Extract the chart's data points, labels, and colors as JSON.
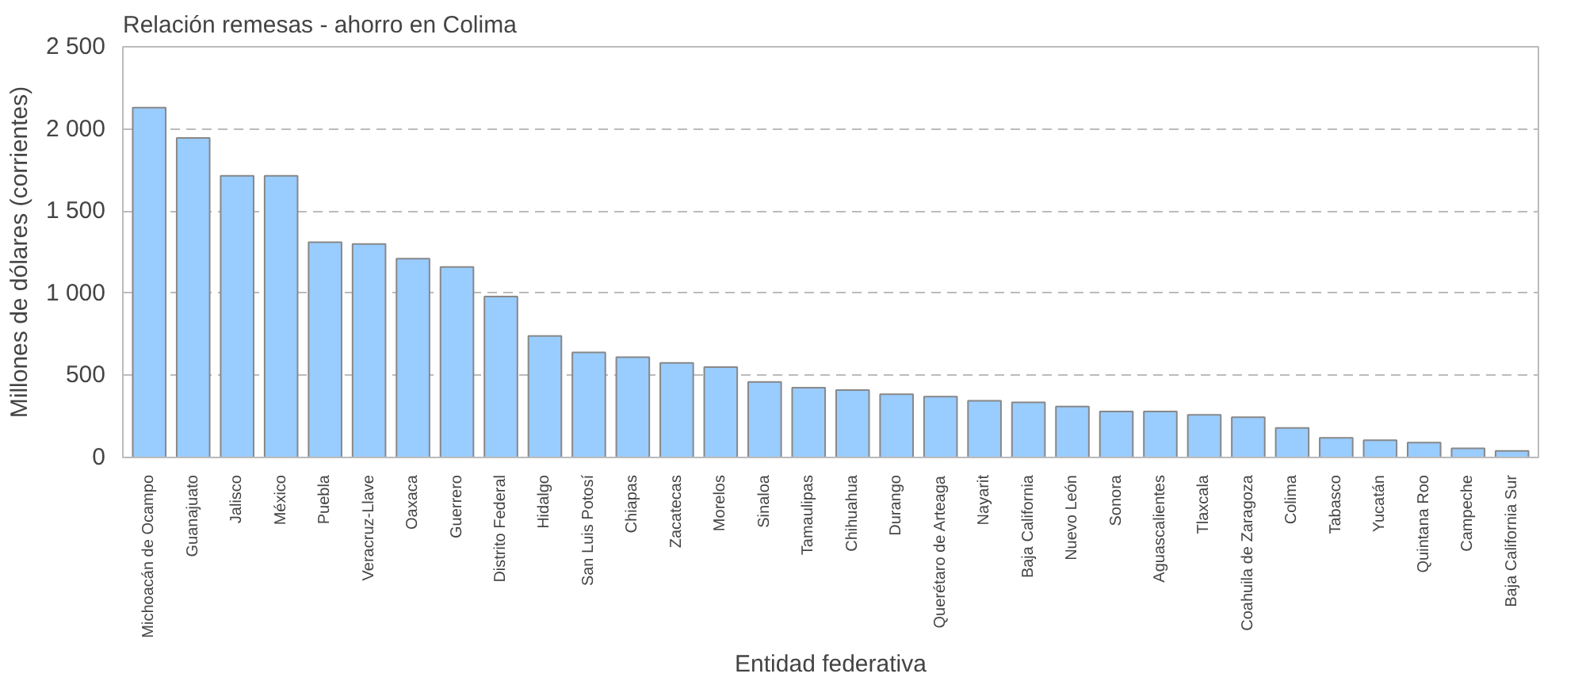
{
  "chart_data": {
    "type": "bar",
    "title": "Relación remesas - ahorro en Colima",
    "xlabel": "Entidad federativa",
    "ylabel": "Millones de dólares (corrientes)",
    "categories": [
      "Michoacán de Ocampo",
      "Guanajuato",
      "Jalisco",
      "México",
      "Puebla",
      "Veracruz-Llave",
      "Oaxaca",
      "Guerrero",
      "Distrito Federal",
      "Hidalgo",
      "San Luis Potosí",
      "Chiapas",
      "Zacatecas",
      "Morelos",
      "Sinaloa",
      "Tamaulipas",
      "Chihuahua",
      "Durango",
      "Querétaro de Arteaga",
      "Nayarit",
      "Baja California",
      "Nuevo León",
      "Sonora",
      "Aguascalientes",
      "Tlaxcala",
      "Coahuila de Zaragoza",
      "Colima",
      "Tabasco",
      "Yucatán",
      "Quintana Roo",
      "Campeche",
      "Baja California Sur"
    ],
    "values": [
      2130,
      1945,
      1715,
      1715,
      1310,
      1300,
      1210,
      1160,
      980,
      740,
      640,
      610,
      575,
      550,
      460,
      425,
      410,
      385,
      370,
      345,
      335,
      310,
      280,
      280,
      260,
      245,
      180,
      120,
      105,
      90,
      55,
      40
    ],
    "color": "#99ccff",
    "ylim": [
      0,
      2500
    ],
    "yticks": [
      0,
      {
        "value": 500,
        "label": "500"
      },
      {
        "value": 1000,
        "label": "1 000"
      },
      {
        "value": 1500,
        "label": "1 500"
      },
      {
        "value": 2000,
        "label": "2 000"
      },
      {
        "value": 2500,
        "label": "2 500"
      }
    ],
    "grid": "y"
  }
}
